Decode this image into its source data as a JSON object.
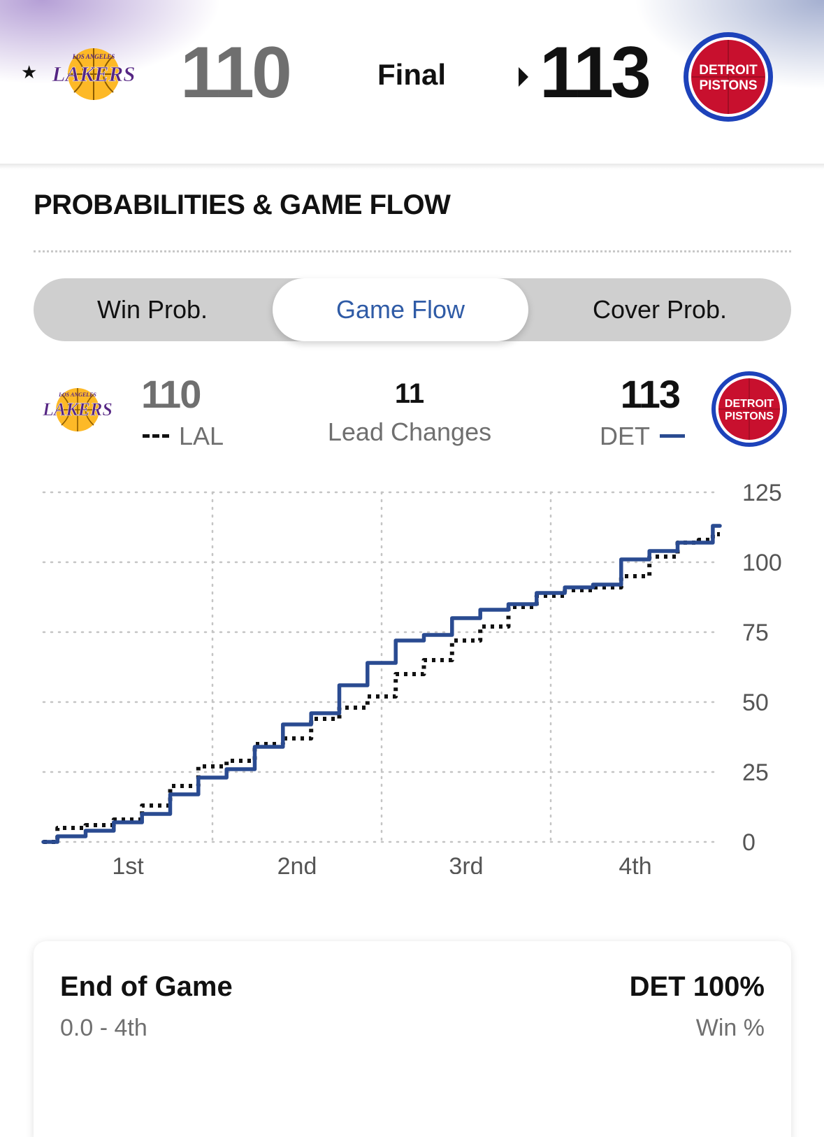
{
  "scoreboard": {
    "away": {
      "abbr": "LAL",
      "score": "110",
      "logo_text": "LAKERS",
      "logo_sub": "LOS ANGELES",
      "favorite_marker": "★"
    },
    "home": {
      "abbr": "DET",
      "score": "113",
      "logo_text_1": "DETROIT",
      "logo_text_2": "PISTONS"
    },
    "status": "Final"
  },
  "section": {
    "title": "PROBABILITIES & GAME FLOW"
  },
  "tabs": [
    {
      "label": "Win Prob.",
      "active": false
    },
    {
      "label": "Game Flow",
      "active": true
    },
    {
      "label": "Cover Prob.",
      "active": false
    }
  ],
  "summary": {
    "away_score": "110",
    "away_abbr": "LAL",
    "lead_changes": "11",
    "lead_changes_label": "Lead Changes",
    "home_score": "113",
    "home_abbr": "DET"
  },
  "chart_data": {
    "type": "line",
    "title": "",
    "xlabel": "",
    "ylabel": "",
    "x_ticks": [
      "1st",
      "2nd",
      "3rd",
      "4th"
    ],
    "y_ticks": [
      "125",
      "100",
      "75",
      "50",
      "25",
      "0"
    ],
    "xlim": [
      0,
      48
    ],
    "ylim": [
      0,
      125
    ],
    "grid": true,
    "series": [
      {
        "name": "LAL",
        "style": "dotted",
        "color": "#111111",
        "x": [
          0,
          2,
          4,
          6,
          8,
          10,
          12,
          14,
          16,
          18,
          20,
          22,
          24,
          26,
          28,
          30,
          32,
          34,
          36,
          38,
          40,
          42,
          44,
          46,
          47,
          48
        ],
        "y": [
          0,
          5,
          6,
          8,
          13,
          20,
          27,
          29,
          35,
          37,
          44,
          48,
          52,
          60,
          65,
          72,
          77,
          84,
          88,
          90,
          91,
          95,
          102,
          107,
          108,
          110
        ]
      },
      {
        "name": "DET",
        "style": "solid",
        "color": "#2a4b91",
        "x": [
          0,
          2,
          4,
          6,
          8,
          10,
          12,
          14,
          16,
          18,
          20,
          22,
          24,
          26,
          28,
          30,
          32,
          34,
          36,
          38,
          40,
          42,
          44,
          46,
          47,
          48
        ],
        "y": [
          0,
          2,
          4,
          7,
          10,
          17,
          23,
          26,
          34,
          42,
          46,
          56,
          64,
          72,
          74,
          80,
          83,
          85,
          89,
          91,
          92,
          101,
          104,
          107,
          107,
          113
        ]
      }
    ]
  },
  "end_card": {
    "title": "End of Game",
    "subtitle": "0.0 - 4th",
    "right_title": "DET 100%",
    "right_sub": "Win %"
  },
  "colors": {
    "det_blue": "#2a4b91",
    "det_red": "#c8102e",
    "lal_purple": "#552583",
    "lal_gold": "#fdb927",
    "tab_active": "#2f5ba6"
  }
}
